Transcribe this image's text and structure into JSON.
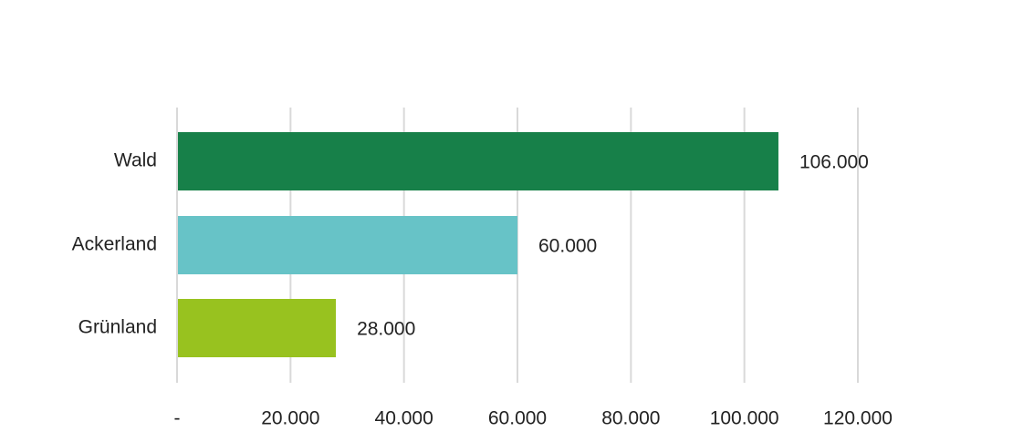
{
  "chart_data": {
    "type": "bar",
    "orientation": "horizontal",
    "title": "",
    "xlabel": "",
    "ylabel": "",
    "categories": [
      "Wald",
      "Ackerland",
      "Grünland"
    ],
    "values": [
      106000,
      60000,
      28000
    ],
    "value_labels": [
      "106.000",
      "60.000",
      "28.000"
    ],
    "colors": [
      "#178049",
      "#67c3c7",
      "#98c21f"
    ],
    "xlim": [
      0,
      120000
    ],
    "x_ticks": [
      0,
      20000,
      40000,
      60000,
      80000,
      100000,
      120000
    ],
    "x_tick_labels": [
      "-",
      "20.000",
      "40.000",
      "60.000",
      "80.000",
      "100.000",
      "120.000"
    ],
    "grid": "vertical",
    "legend": "none"
  }
}
